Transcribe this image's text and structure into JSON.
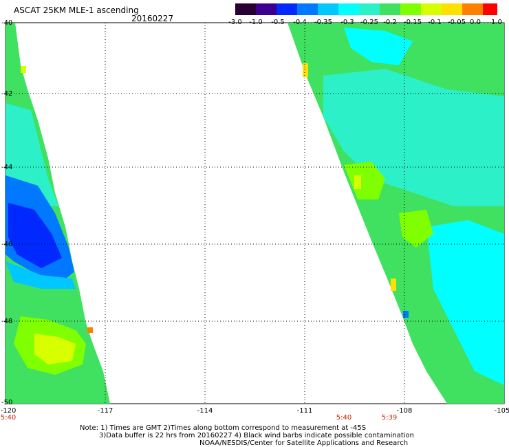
{
  "header": {
    "title": "ASCAT 25KM MLE-1 ascending",
    "date": "20160227"
  },
  "colorbar": {
    "labels": [
      "-3.0",
      "-1.0",
      "-0.5",
      "-0.4",
      "-0.35",
      "-0.3",
      "-0.25",
      "-0.2",
      "-0.15",
      "-0.1",
      "-0.05",
      "0.0",
      "1.0"
    ],
    "colors": [
      "#280034",
      "#3c0090",
      "#0028ff",
      "#0078ff",
      "#00c8ff",
      "#00ffff",
      "#2cf0c8",
      "#40e060",
      "#80ff00",
      "#d8ff00",
      "#ffe000",
      "#ff8000",
      "#ff0000"
    ]
  },
  "map": {
    "lat_labels": [
      "-40",
      "-42",
      "-44",
      "-46",
      "-48",
      "-50"
    ],
    "lon_labels": [
      "-120",
      "-117",
      "-114",
      "-111",
      "-108",
      "-105"
    ],
    "time_labels": [
      "5:40",
      "5:40",
      "5:39"
    ]
  },
  "notes": {
    "line1": "Note: 1) Times are GMT 2)Times along bottom correspond to measurement at -45S",
    "line2": "3)Data buffer is 22 hrs from 20160227 4) Black wind barbs indicate possible contamination",
    "line3": "NOAA/NESDIS/Center for Satellite Applications and Research"
  }
}
